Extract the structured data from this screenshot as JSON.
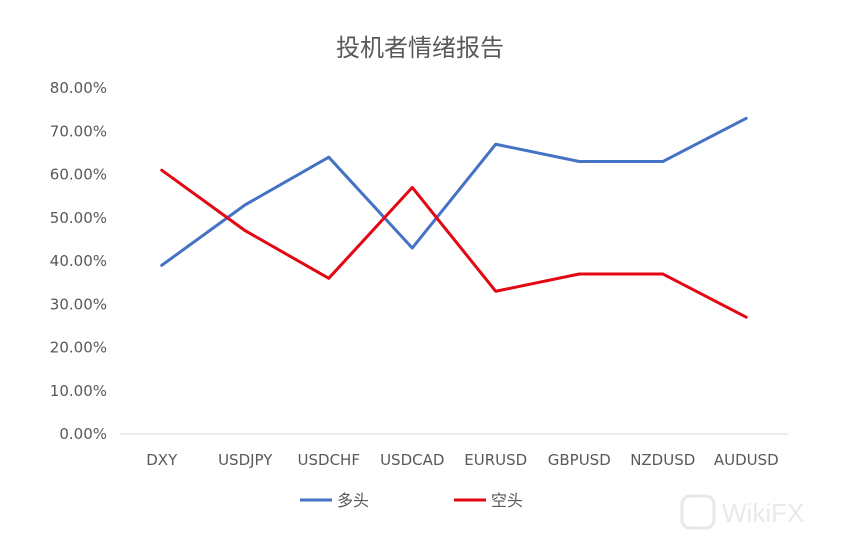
{
  "chart_data": {
    "type": "line",
    "title": "投机者情绪报告",
    "categories": [
      "DXY",
      "USDJPY",
      "USDCHF",
      "USDCAD",
      "EURUSD",
      "GBPUSD",
      "NZDUSD",
      "AUDUSD"
    ],
    "series": [
      {
        "name": "多头",
        "color": "#4472c4",
        "values": [
          0.39,
          0.53,
          0.64,
          0.43,
          0.67,
          0.63,
          0.63,
          0.73
        ]
      },
      {
        "name": "空头",
        "color": "#e30613",
        "values": [
          0.61,
          0.47,
          0.36,
          0.57,
          0.33,
          0.37,
          0.37,
          0.27
        ]
      }
    ],
    "y_ticks": [
      "0.00%",
      "10.00%",
      "20.00%",
      "30.00%",
      "40.00%",
      "50.00%",
      "60.00%",
      "70.00%",
      "80.00%"
    ],
    "ylim": [
      0,
      0.8
    ],
    "grid": false,
    "legend_position": "bottom"
  },
  "watermark": "WikiFX"
}
